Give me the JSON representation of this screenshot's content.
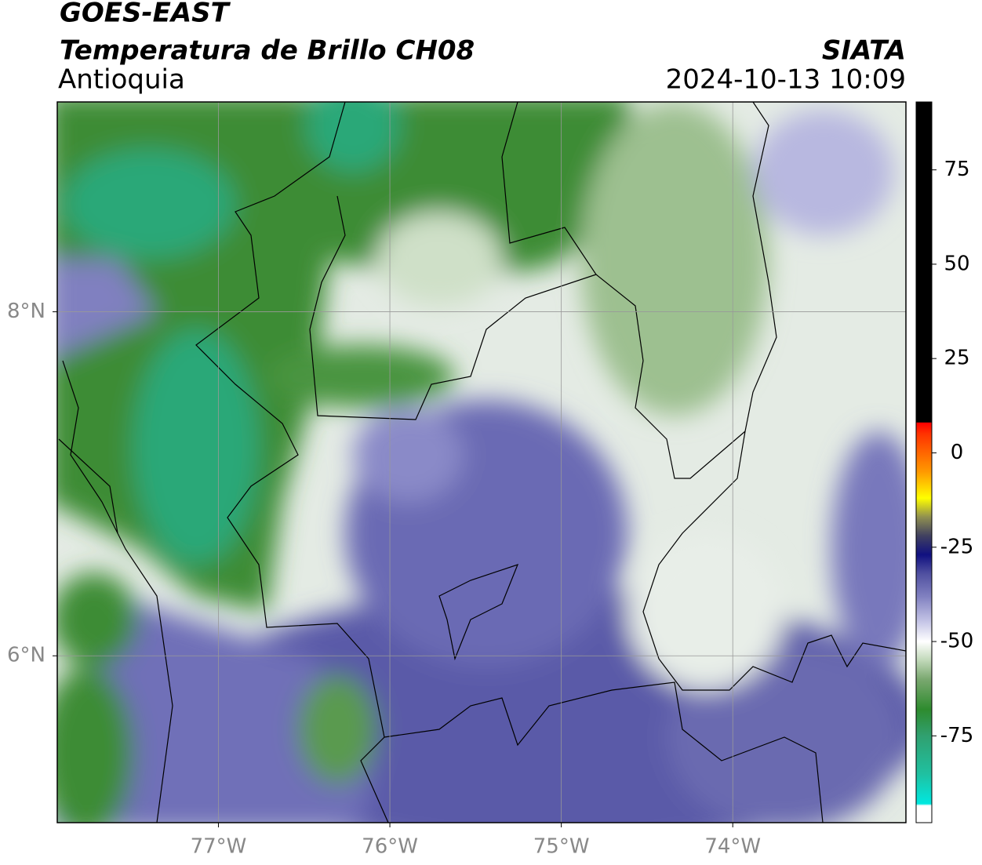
{
  "header": {
    "title": "GOES-EAST",
    "subtitle": "Temperatura de Brillo CH08",
    "region": "Antioquia",
    "source": "SIATA",
    "timestamp": "2024-10-13 10:09"
  },
  "map": {
    "lon_range": [
      -77.94,
      -72.99
    ],
    "lat_range": [
      5.03,
      9.22
    ],
    "lon_ticks": [
      {
        "value": -77,
        "label": "77°W"
      },
      {
        "value": -76,
        "label": "76°W"
      },
      {
        "value": -75,
        "label": "75°W"
      },
      {
        "value": -74,
        "label": "74°W"
      }
    ],
    "lat_ticks": [
      {
        "value": 8,
        "label": "8°N"
      },
      {
        "value": 6,
        "label": "6°N"
      }
    ],
    "grid": true
  },
  "colorbar": {
    "range": [
      -98,
      93
    ],
    "ticks": [
      75,
      50,
      25,
      0,
      -25,
      -50,
      -75
    ],
    "stops": [
      {
        "value": -98,
        "color": "#ffffff"
      },
      {
        "value": -93.5,
        "color": "#ffffff"
      },
      {
        "value": -93,
        "color": "#00e8e0"
      },
      {
        "value": -85,
        "color": "#20c0a0"
      },
      {
        "value": -75,
        "color": "#30a070"
      },
      {
        "value": -68,
        "color": "#2e8b2e"
      },
      {
        "value": -60,
        "color": "#7aa870"
      },
      {
        "value": -55,
        "color": "#c0d8b8"
      },
      {
        "value": -50,
        "color": "#ffffff"
      },
      {
        "value": -45,
        "color": "#c8c8e8"
      },
      {
        "value": -38,
        "color": "#8080c0"
      },
      {
        "value": -32,
        "color": "#5050a0"
      },
      {
        "value": -27,
        "color": "#101080"
      },
      {
        "value": -22,
        "color": "#404060"
      },
      {
        "value": -17,
        "color": "#909050"
      },
      {
        "value": -12,
        "color": "#ffff00"
      },
      {
        "value": -5,
        "color": "#ff9900"
      },
      {
        "value": 5,
        "color": "#ff3300"
      },
      {
        "value": 8,
        "color": "#ff0000"
      },
      {
        "value": 8.1,
        "color": "#000000"
      },
      {
        "value": 93,
        "color": "#000000"
      }
    ]
  }
}
